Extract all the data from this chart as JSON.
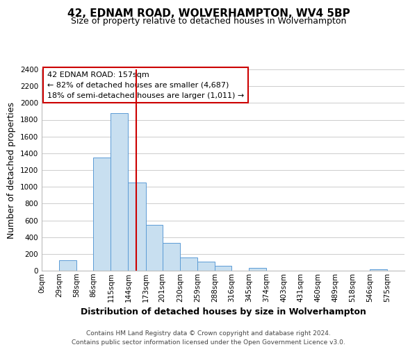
{
  "title": "42, EDNAM ROAD, WOLVERHAMPTON, WV4 5BP",
  "subtitle": "Size of property relative to detached houses in Wolverhampton",
  "xlabel": "Distribution of detached houses by size in Wolverhampton",
  "ylabel": "Number of detached properties",
  "bar_left_edges": [
    0,
    29,
    58,
    86,
    115,
    144,
    173,
    201,
    230,
    259,
    288,
    316,
    345,
    374,
    403,
    431,
    460,
    489,
    518,
    546
  ],
  "bar_widths": [
    29,
    29,
    28,
    29,
    29,
    29,
    28,
    29,
    29,
    29,
    28,
    29,
    29,
    29,
    28,
    29,
    29,
    29,
    28,
    29
  ],
  "bar_heights": [
    0,
    125,
    0,
    1350,
    1880,
    1050,
    550,
    335,
    160,
    105,
    60,
    0,
    30,
    0,
    0,
    0,
    0,
    0,
    0,
    15
  ],
  "bar_color": "#c8dff0",
  "bar_edge_color": "#5b9bd5",
  "tick_labels": [
    "0sqm",
    "29sqm",
    "58sqm",
    "86sqm",
    "115sqm",
    "144sqm",
    "173sqm",
    "201sqm",
    "230sqm",
    "259sqm",
    "288sqm",
    "316sqm",
    "345sqm",
    "374sqm",
    "403sqm",
    "431sqm",
    "460sqm",
    "489sqm",
    "518sqm",
    "546sqm",
    "575sqm"
  ],
  "vline_x": 157,
  "vline_color": "#cc0000",
  "ylim": [
    0,
    2400
  ],
  "yticks": [
    0,
    200,
    400,
    600,
    800,
    1000,
    1200,
    1400,
    1600,
    1800,
    2000,
    2200,
    2400
  ],
  "annotation_title": "42 EDNAM ROAD: 157sqm",
  "annotation_line1": "← 82% of detached houses are smaller (4,687)",
  "annotation_line2": "18% of semi-detached houses are larger (1,011) →",
  "footer1": "Contains HM Land Registry data © Crown copyright and database right 2024.",
  "footer2": "Contains public sector information licensed under the Open Government Licence v3.0.",
  "background_color": "#ffffff",
  "grid_color": "#cccccc",
  "title_fontsize": 11,
  "subtitle_fontsize": 9,
  "annotation_fontsize": 8,
  "axis_label_fontsize": 9,
  "tick_fontsize": 7.5,
  "footer_fontsize": 6.5
}
